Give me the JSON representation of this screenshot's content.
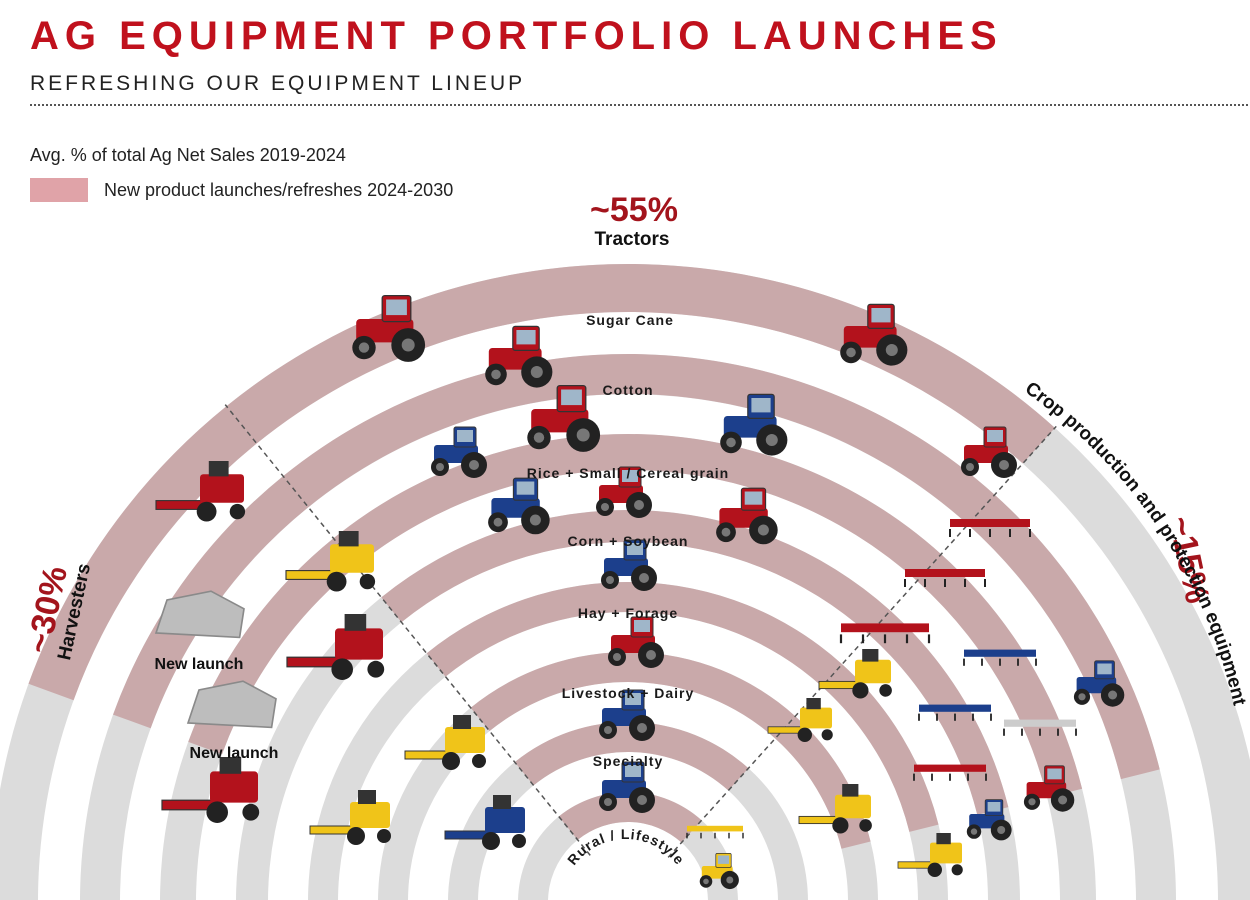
{
  "header": {
    "title": "AG EQUIPMENT PORTFOLIO LAUNCHES",
    "subtitle": "REFRESHING OUR EQUIPMENT LINEUP"
  },
  "legend": {
    "heading": "Avg. % of total Ag Net Sales 2019-2024",
    "item": "New product launches/refreshes 2024-2030",
    "swatch_color": "#e0a3a8"
  },
  "segments": {
    "tractors": {
      "percent": "~55%",
      "label": "Tractors"
    },
    "harvesters": {
      "percent": "~30%",
      "label": "Harvesters"
    },
    "crop": {
      "percent": "~15%",
      "label": "Crop production and protection equipment"
    }
  },
  "rings": [
    {
      "label": "Sugar Cane"
    },
    {
      "label": "Cotton"
    },
    {
      "label": "Rice + Small / Cereal grain"
    },
    {
      "label": "Corn + Soybean"
    },
    {
      "label": "Hay + Forage"
    },
    {
      "label": "Livestock + Dairy"
    },
    {
      "label": "Specialty"
    },
    {
      "label": "Rural / Lifestyle"
    }
  ],
  "new_launch_labels": [
    "New launch",
    "New launch"
  ],
  "colors": {
    "title": "#c0111d",
    "percent": "#a3141c",
    "highlight_band": "#c9a9aa",
    "plain_band": "#dcdcdc",
    "case_ih_red": "#b3121c",
    "new_holland_blue": "#1c3f8c",
    "new_holland_yellow": "#f0c419"
  },
  "icons": {
    "tractor": "tractor-icon",
    "harvester": "combine-harvester-icon",
    "implement": "implement-icon",
    "new_launch": "new-launch-placeholder-icon"
  }
}
